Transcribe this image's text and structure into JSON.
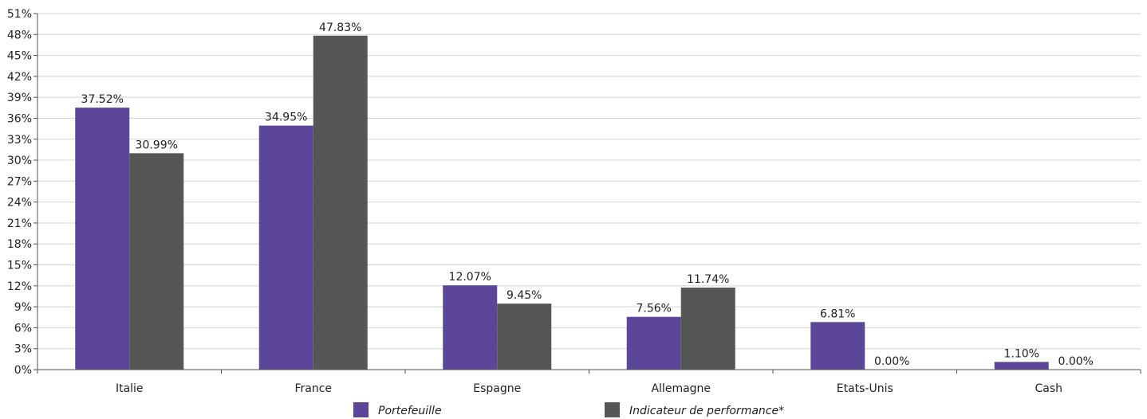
{
  "chart_data": {
    "type": "bar",
    "categories": [
      "Italie",
      "France",
      "Espagne",
      "Allemagne",
      "Etats-Unis",
      "Cash"
    ],
    "series": [
      {
        "name": "Portefeuille",
        "color": "#5b4699",
        "values": [
          37.52,
          34.95,
          12.07,
          7.56,
          6.81,
          1.1
        ],
        "labels": [
          "37.52%",
          "34.95%",
          "12.07%",
          "7.56%",
          "6.81%",
          "1.10%"
        ]
      },
      {
        "name": "Indicateur de performance*",
        "color": "#565656",
        "values": [
          30.99,
          47.83,
          9.45,
          11.74,
          0.0,
          0.0
        ],
        "labels": [
          "30.99%",
          "47.83%",
          "9.45%",
          "11.74%",
          "0.00%",
          "0.00%"
        ]
      }
    ],
    "ylim": [
      0,
      51
    ],
    "ytick_step": 3,
    "ytick_suffix": "%",
    "grid": true,
    "legend_position": "bottom",
    "title": "",
    "xlabel": "",
    "ylabel": ""
  }
}
